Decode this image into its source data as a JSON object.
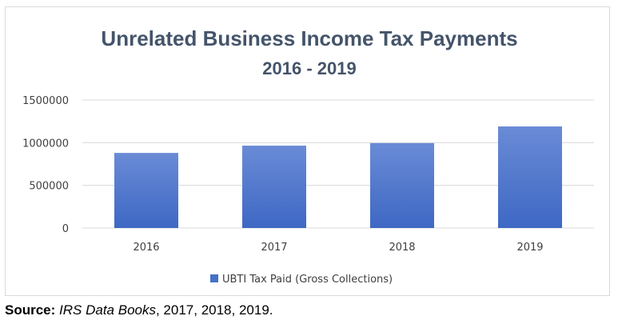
{
  "chart_data": {
    "type": "bar",
    "title": "Unrelated Business Income Tax Payments",
    "subtitle": "2016 - 2019",
    "categories": [
      "2016",
      "2017",
      "2018",
      "2019"
    ],
    "series": [
      {
        "name": "UBTI Tax Paid (Gross Collections)",
        "values": [
          880000,
          965000,
          995000,
          1190000
        ]
      }
    ],
    "ylim": [
      0,
      1500000
    ],
    "yticks": [
      "0",
      "500000",
      "1000000",
      "1500000"
    ],
    "grid": true,
    "legend_position": "bottom",
    "bar_color_top": "#6a8bd6",
    "bar_color_bottom": "#3e68c4"
  },
  "source": {
    "label": "Source:",
    "book": "IRS Data Books",
    "years": ", 2017, 2018, 2019."
  }
}
